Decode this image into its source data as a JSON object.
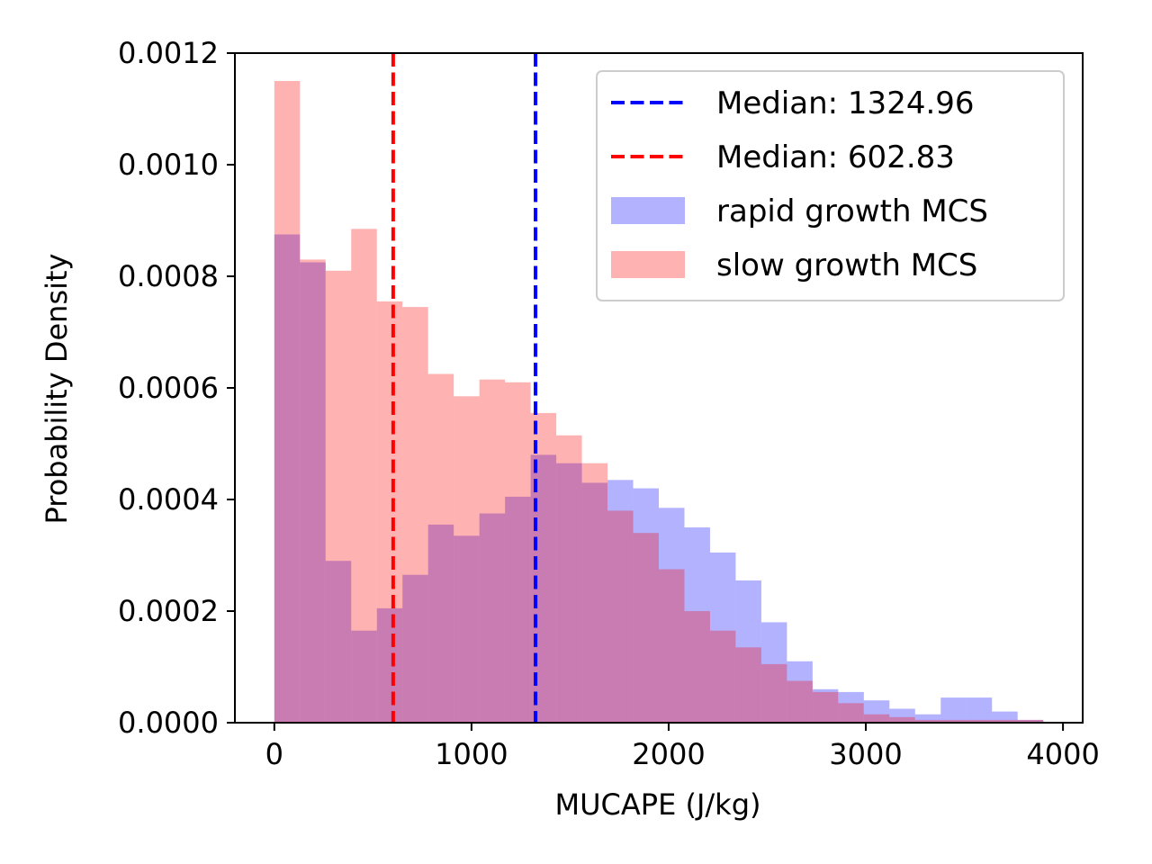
{
  "chart_data": {
    "type": "bar",
    "title": "",
    "xlabel": "MUCAPE (J/kg)",
    "ylabel": "Probability Density",
    "xlim": [
      -200,
      4100
    ],
    "ylim": [
      0,
      0.0012
    ],
    "xticks": [
      0,
      1000,
      2000,
      3000,
      4000
    ],
    "xtick_labels": [
      "0",
      "1000",
      "2000",
      "3000",
      "4000"
    ],
    "yticks": [
      0,
      0.0002,
      0.0004,
      0.0006,
      0.0008,
      0.001,
      0.0012
    ],
    "ytick_labels": [
      "0.0000",
      "0.0002",
      "0.0004",
      "0.0006",
      "0.0008",
      "0.0010",
      "0.0012"
    ],
    "grid": false,
    "legend_position": "top-right",
    "series": [
      {
        "name": "rapid growth MCS",
        "color": "#0000ff",
        "opacity": 0.3,
        "bin_start": 0,
        "bin_width": 130,
        "values": [
          0.000875,
          0.000825,
          0.00029,
          0.000165,
          0.000205,
          0.000265,
          0.000355,
          0.000335,
          0.000375,
          0.000405,
          0.00048,
          0.000465,
          0.00043,
          0.000435,
          0.00042,
          0.000385,
          0.00035,
          0.000305,
          0.000255,
          0.00018,
          0.00011,
          6e-05,
          5.5e-05,
          4e-05,
          2.5e-05,
          1.5e-05,
          4.5e-05,
          4.5e-05,
          2e-05,
          5e-06
        ]
      },
      {
        "name": "slow growth MCS",
        "color": "#ff0000",
        "opacity": 0.3,
        "bin_start": 0,
        "bin_width": 130,
        "values": [
          0.00115,
          0.00083,
          0.00081,
          0.000885,
          0.000755,
          0.000745,
          0.000625,
          0.000585,
          0.000615,
          0.00061,
          0.000555,
          0.000515,
          0.000465,
          0.00038,
          0.00034,
          0.000275,
          0.0002,
          0.000165,
          0.000135,
          0.000105,
          7.5e-05,
          5.5e-05,
          3.5e-05,
          1.5e-05,
          1e-05,
          5e-06,
          5e-06,
          5e-06,
          5e-06,
          5e-06
        ]
      }
    ],
    "median_lines": [
      {
        "label": "Median: 1324.96",
        "value": 1324.96,
        "color": "#0000ff"
      },
      {
        "label": "Median: 602.83",
        "value": 602.83,
        "color": "#ff0000"
      }
    ]
  }
}
